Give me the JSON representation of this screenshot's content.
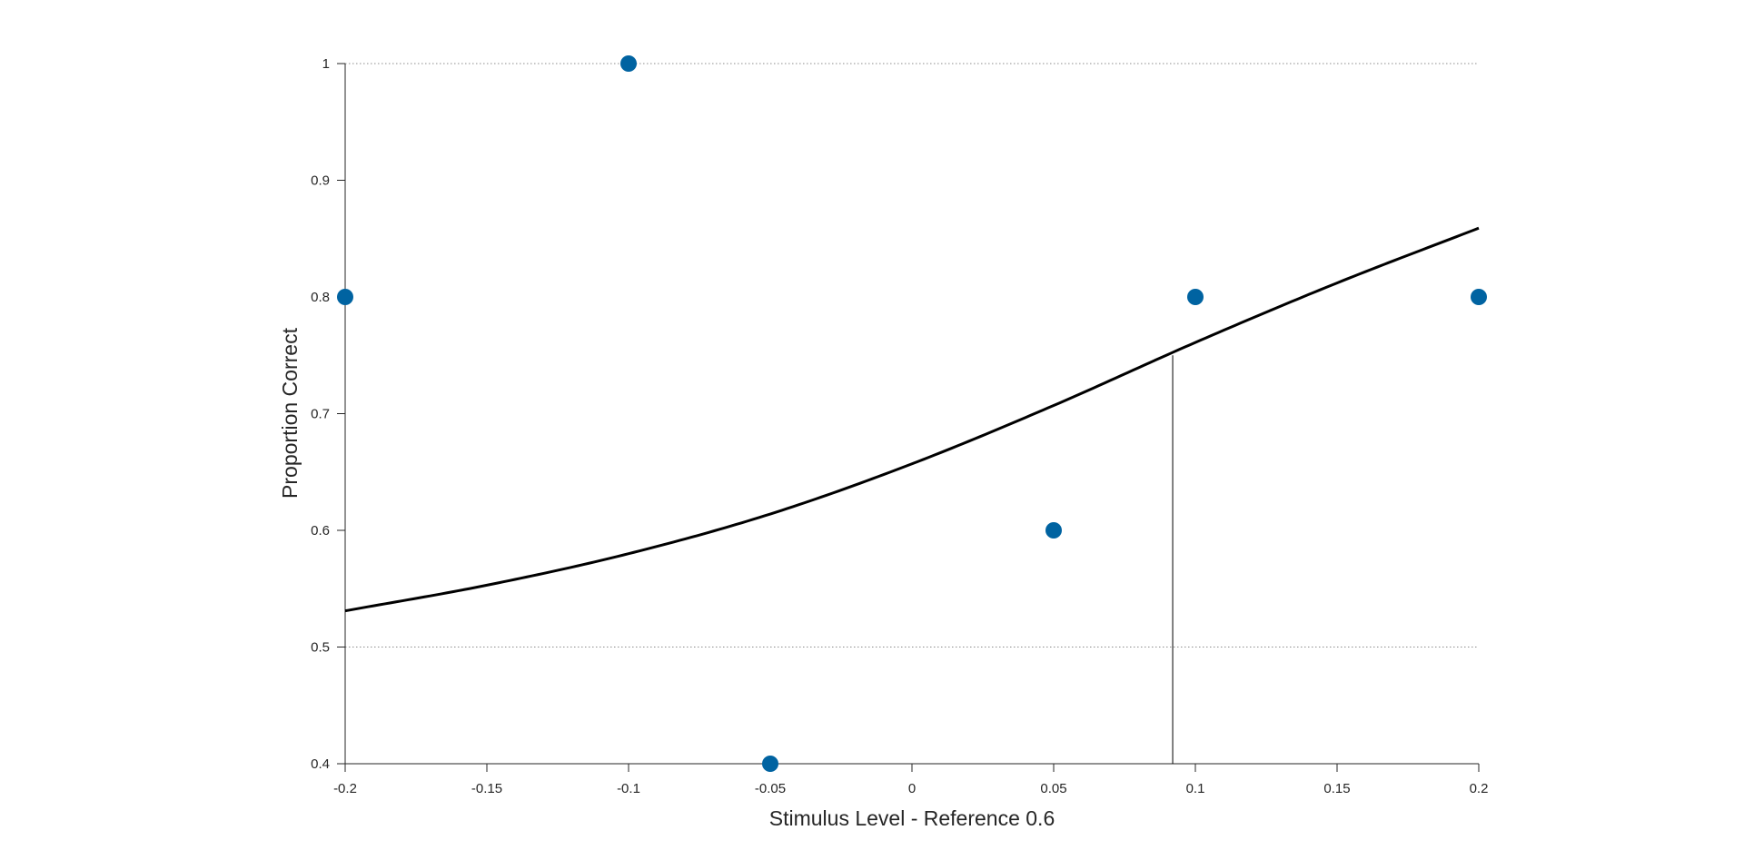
{
  "chart_data": {
    "type": "scatter",
    "title": "",
    "xlabel": "Stimulus Level - Reference 0.6",
    "ylabel": "Proportion Correct",
    "xlim": [
      -0.2,
      0.2
    ],
    "ylim": [
      0.4,
      1.0
    ],
    "x_ticks": [
      "-0.2",
      "-0.15",
      "-0.1",
      "-0.05",
      "0",
      "0.05",
      "0.1",
      "0.15",
      "0.2"
    ],
    "y_ticks": [
      "0.4",
      "0.5",
      "0.6",
      "0.7",
      "0.8",
      "0.9",
      "1"
    ],
    "grid": false,
    "reference_lines_y": [
      0.5,
      1.0
    ],
    "threshold": {
      "x": 0.092,
      "y": 0.75
    },
    "points": {
      "x": [
        -0.2,
        -0.1,
        -0.05,
        0.05,
        0.1,
        0.2
      ],
      "y": [
        0.8,
        1.0,
        0.4,
        0.6,
        0.8,
        0.8
      ],
      "color": "#0063a1"
    },
    "fit": {
      "x": [
        -0.2,
        -0.15,
        -0.1,
        -0.05,
        0.0,
        0.05,
        0.1,
        0.15,
        0.2
      ],
      "y": [
        0.531,
        0.553,
        0.58,
        0.614,
        0.657,
        0.707,
        0.761,
        0.812,
        0.859
      ],
      "color": "#000000"
    }
  }
}
